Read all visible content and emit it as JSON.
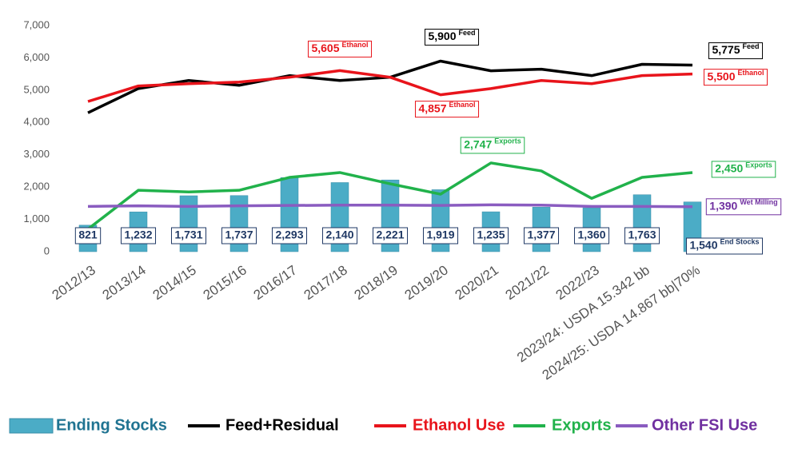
{
  "chart_data": {
    "type": "combo",
    "categories": [
      "2012/13",
      "2013/14",
      "2014/15",
      "2015/16",
      "2016/17",
      "2017/18",
      "2018/19",
      "2019/20",
      "2020/21",
      "2021/22",
      "2022/23",
      "2023/24: USDA 15.342 bb",
      "2024/25: USDA 14.867 bb|70%"
    ],
    "ylim": [
      0,
      7000
    ],
    "yticks": [
      0,
      {
        "value": 1000,
        "label": "1,000"
      },
      {
        "value": 2000,
        "label": "2,000"
      },
      {
        "value": 3000,
        "label": "3,000"
      },
      {
        "value": 4000,
        "label": "4,000"
      },
      {
        "value": 5000,
        "label": "5,000"
      },
      {
        "value": 6000,
        "label": "6,000"
      },
      {
        "value": 7000,
        "label": "7,000"
      }
    ],
    "legend": "bottom",
    "series": [
      {
        "name": "Ending Stocks",
        "type": "bar",
        "color": "#4bacc6",
        "text_color": "#1f7391",
        "values": [
          821,
          1232,
          1731,
          1737,
          2293,
          2140,
          2221,
          1919,
          1235,
          1377,
          1360,
          1763,
          1540
        ],
        "value_labels": [
          "821",
          "1,232",
          "1,731",
          "1,737",
          "2,293",
          "2,140",
          "2,221",
          "1,919",
          "1,235",
          "1,377",
          "1,360",
          "1,763",
          "1,540"
        ],
        "label_notes": [
          null,
          null,
          null,
          null,
          null,
          null,
          null,
          null,
          null,
          null,
          null,
          null,
          "End Stocks"
        ]
      },
      {
        "name": "Feed+Residual",
        "type": "line",
        "color": "#000000",
        "text_color": "#000000",
        "values": [
          4300,
          5050,
          5300,
          5150,
          5450,
          5300,
          5400,
          5900,
          5600,
          5650,
          5450,
          5800,
          5775
        ],
        "value_labels": [
          null,
          null,
          null,
          null,
          null,
          null,
          null,
          "5,900",
          null,
          null,
          null,
          null,
          "5,775"
        ],
        "label_notes": [
          null,
          null,
          null,
          null,
          null,
          null,
          null,
          "Feed",
          null,
          null,
          null,
          null,
          "Feed"
        ]
      },
      {
        "name": "Ethanol Use",
        "type": "line",
        "color": "#e8141b",
        "text_color": "#e8141b",
        "values": [
          4650,
          5130,
          5200,
          5250,
          5400,
          5605,
          5400,
          4857,
          5050,
          5300,
          5200,
          5450,
          5500
        ],
        "value_labels": [
          null,
          null,
          null,
          null,
          null,
          "5,605",
          null,
          "4,857",
          null,
          null,
          null,
          null,
          "5,500"
        ],
        "label_notes": [
          null,
          null,
          null,
          null,
          null,
          "Ethanol",
          null,
          "Ethanol",
          null,
          null,
          null,
          null,
          "Ethanol"
        ]
      },
      {
        "name": "Exports",
        "type": "line",
        "color": "#21b24b",
        "text_color": "#21b24b",
        "values": [
          700,
          1900,
          1850,
          1900,
          2300,
          2450,
          2100,
          1780,
          2747,
          2500,
          1650,
          2300,
          2450
        ],
        "value_labels": [
          null,
          null,
          null,
          null,
          null,
          null,
          null,
          null,
          "2,747",
          null,
          null,
          null,
          "2,450"
        ],
        "label_notes": [
          null,
          null,
          null,
          null,
          null,
          null,
          null,
          null,
          "Exports",
          null,
          null,
          null,
          "Exports"
        ]
      },
      {
        "name": "Other FSI Use",
        "type": "line",
        "color": "#8a5cc0",
        "text_color": "#7030a0",
        "values": [
          1400,
          1420,
          1400,
          1420,
          1430,
          1440,
          1440,
          1430,
          1450,
          1440,
          1400,
          1400,
          1390
        ],
        "value_labels": [
          null,
          null,
          null,
          null,
          null,
          null,
          null,
          null,
          null,
          null,
          null,
          null,
          "1,390"
        ],
        "label_notes": [
          null,
          null,
          null,
          null,
          null,
          null,
          null,
          null,
          null,
          null,
          null,
          null,
          "Wet Milling"
        ]
      }
    ]
  }
}
